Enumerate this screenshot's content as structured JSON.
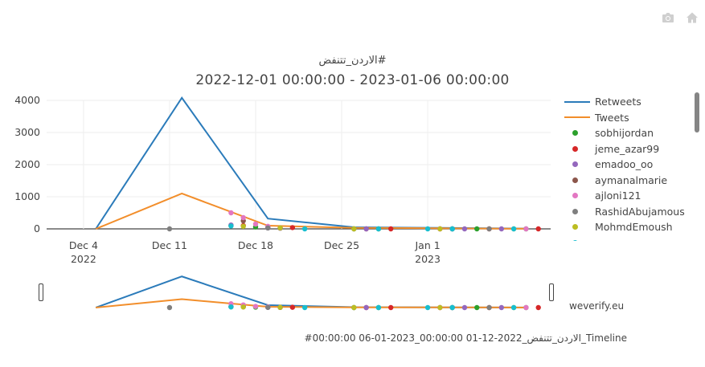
{
  "modebar": {
    "camera_icon": "camera-icon",
    "home_icon": "home-icon"
  },
  "chart_data": {
    "type": "line",
    "title": "الاردن_تتنفض#",
    "subtitle": "2022-12-01 00:00:00 - 2023-01-06 00:00:00",
    "ylim": [
      0,
      4000
    ],
    "yticks": [
      0,
      1000,
      2000,
      3000,
      4000
    ],
    "xlim": [
      "2022-12-01",
      "2023-01-11"
    ],
    "xticks": [
      {
        "date": "2022-12-04",
        "label": "Dec 4",
        "sub": "2022"
      },
      {
        "date": "2022-12-11",
        "label": "Dec 11",
        "sub": ""
      },
      {
        "date": "2022-12-18",
        "label": "Dec 18",
        "sub": ""
      },
      {
        "date": "2022-12-25",
        "label": "Dec 25",
        "sub": ""
      },
      {
        "date": "2023-01-01",
        "label": "Jan 1",
        "sub": "2023"
      }
    ],
    "lines": [
      {
        "name": "Retweets",
        "color": "#2b7bba",
        "x": [
          "2022-12-05",
          "2022-12-12",
          "2022-12-19",
          "2022-12-26",
          "2023-01-02",
          "2023-01-09"
        ],
        "y": [
          0,
          4080,
          320,
          50,
          30,
          10
        ]
      },
      {
        "name": "Tweets",
        "color": "#f28e2b",
        "x": [
          "2022-12-05",
          "2022-12-12",
          "2022-12-19",
          "2022-12-26",
          "2023-01-02",
          "2023-01-09"
        ],
        "y": [
          0,
          1100,
          100,
          30,
          20,
          5
        ]
      }
    ],
    "scatter": [
      {
        "name": "sobhijordan",
        "color": "#2ca02c",
        "x": [
          "2022-12-16",
          "2022-12-18",
          "2022-12-26",
          "2022-12-28",
          "2023-01-03",
          "2023-01-05",
          "2023-01-09"
        ],
        "y": [
          100,
          60,
          0,
          0,
          0,
          0,
          0
        ]
      },
      {
        "name": "jeme_azar99",
        "color": "#d62728",
        "x": [
          "2022-12-17",
          "2022-12-21",
          "2022-12-27",
          "2022-12-29",
          "2023-01-02",
          "2023-01-06",
          "2023-01-10"
        ],
        "y": [
          100,
          40,
          0,
          0,
          0,
          0,
          0
        ]
      },
      {
        "name": "emadoo_oo",
        "color": "#9467bd",
        "x": [
          "2022-12-16",
          "2022-12-19",
          "2022-12-20",
          "2022-12-27",
          "2023-01-03",
          "2023-01-04",
          "2023-01-07"
        ],
        "y": [
          120,
          30,
          20,
          0,
          0,
          0,
          0
        ]
      },
      {
        "name": "aymanalmarie",
        "color": "#8c564b",
        "x": [
          "2022-12-17",
          "2022-12-19",
          "2022-12-20"
        ],
        "y": [
          250,
          50,
          30
        ]
      },
      {
        "name": "ajloni121",
        "color": "#e377c2",
        "x": [
          "2022-12-16",
          "2022-12-17",
          "2022-12-18",
          "2022-12-19",
          "2023-01-02",
          "2023-01-09"
        ],
        "y": [
          500,
          350,
          150,
          80,
          0,
          0
        ]
      },
      {
        "name": "RashidAbujamous",
        "color": "#7f7f7f",
        "x": [
          "2022-12-11",
          "2022-12-19",
          "2022-12-26",
          "2023-01-03",
          "2023-01-06"
        ],
        "y": [
          0,
          30,
          0,
          0,
          0
        ]
      },
      {
        "name": "MohmdEmoush",
        "color": "#bcbd22",
        "x": [
          "2022-12-17",
          "2022-12-20",
          "2022-12-26",
          "2023-01-02",
          "2023-01-08"
        ],
        "y": [
          80,
          30,
          0,
          0,
          0
        ]
      },
      {
        "name": "",
        "color": "#17becf",
        "x": [
          "2022-12-16",
          "2022-12-22",
          "2022-12-28",
          "2023-01-01",
          "2023-01-03",
          "2023-01-08"
        ],
        "y": [
          90,
          0,
          0,
          0,
          0,
          0
        ]
      }
    ]
  },
  "range_slider": {
    "left_handle": "range-left-handle",
    "right_handle": "range-right-handle"
  },
  "credit": "weverify.eu",
  "caption": "#00:00:00 06-01-2023_00:00:00 01-12-2022_الاردن_تتنفض_Timeline"
}
